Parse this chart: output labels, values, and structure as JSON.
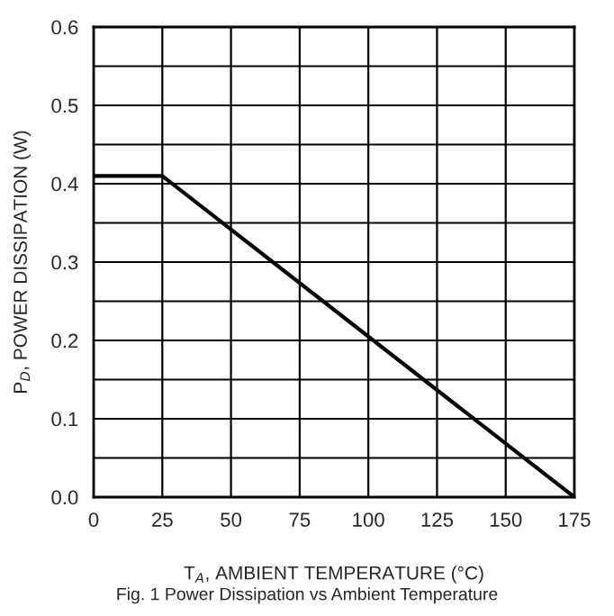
{
  "chart_data": {
    "type": "line",
    "xlabel": "T$_{A}$, AMBIENT TEMPERATURE (°C)",
    "ylabel": "P$_{D}$, POWER DISSIPATION (W)",
    "annotations": [
      "Fig. 1 Power Dissipation vs Ambient Temperature"
    ],
    "x": [
      0,
      25,
      175
    ],
    "series": [
      {
        "color": "#000000",
        "values": [
          0.41,
          0.41,
          0
        ]
      }
    ],
    "xlim": [
      0,
      175
    ],
    "xticks": [
      0,
      25,
      50,
      75,
      100,
      125,
      150,
      175
    ],
    "ylim": [
      0,
      0.6
    ],
    "yticks": [
      {
        "value": 0,
        "label": "0.0"
      },
      {
        "value": 0.05,
        "label": null
      },
      0.1,
      {
        "value": 0.15,
        "label": null
      },
      0.2,
      {
        "value": 0.25,
        "label": null
      },
      0.3,
      {
        "value": 0.35,
        "label": null
      },
      0.4,
      {
        "value": 0.45,
        "label": null
      },
      0.5,
      {
        "value": 0.55,
        "label": null
      },
      0.6
    ],
    "grid": true,
    "marker": "none",
    "line_style": "solid"
  }
}
